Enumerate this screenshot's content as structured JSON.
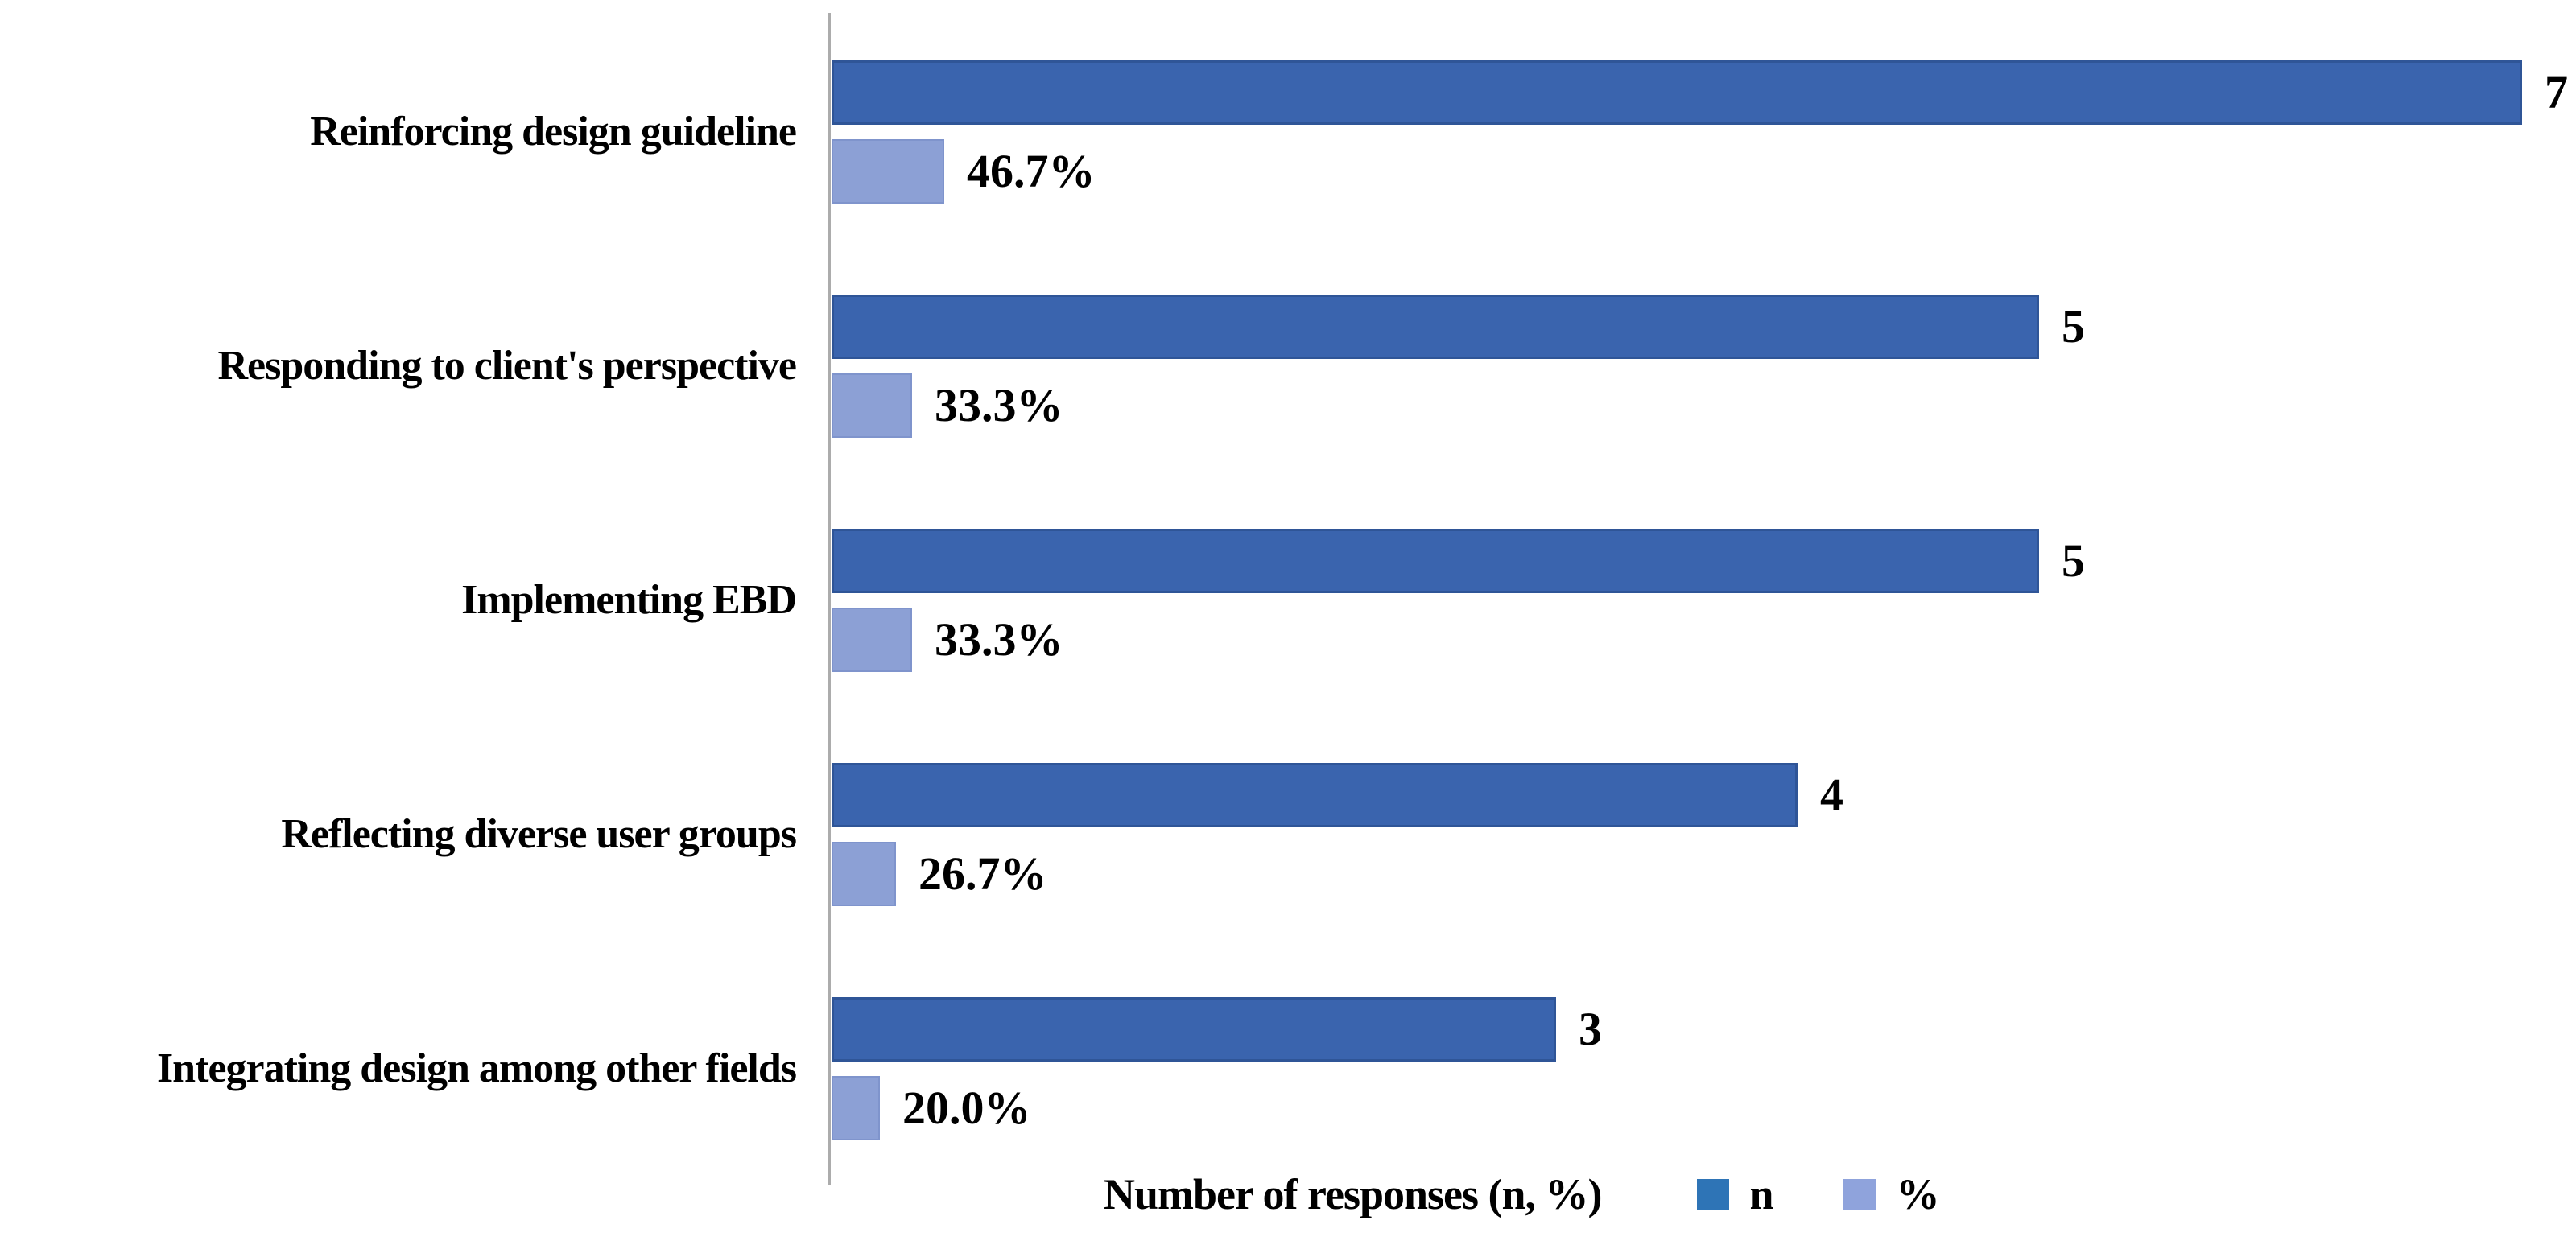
{
  "figure": {
    "background": "#FFFFFF",
    "axis_color": "#ACACAC",
    "text_color": "#000000"
  },
  "chart_data": {
    "type": "bar",
    "orientation": "horizontal",
    "title": "",
    "xlabel": "Number of responses (n, %)",
    "ylabel": "",
    "categories": [
      "Reinforcing design guideline",
      "Responding to client's perspective",
      "Implementing EBD",
      "Reflecting diverse user groups",
      "Integrating design among other fields"
    ],
    "series": [
      {
        "name": "n",
        "color": "#3A64AE",
        "border_color": "#2F5597",
        "values": [
          7,
          5,
          5,
          4,
          3
        ],
        "data_labels": [
          "7",
          "5",
          "5",
          "4",
          "3"
        ]
      },
      {
        "name": "%",
        "color": "#8CA0D5",
        "border_color": "#7F94CC",
        "values": [
          46.7,
          33.3,
          33.3,
          26.7,
          20.0
        ],
        "data_labels": [
          "46.7%",
          "33.3%",
          "33.3%",
          "26.7%",
          "20.0%"
        ],
        "plotted_as": "fraction of 1 on shared value axis"
      }
    ],
    "xlim": [
      0,
      7.2
    ],
    "gridlines": false,
    "value_axis_visible": false,
    "legend_position": "bottom",
    "legend": {
      "title": "Number of responses (n, %)",
      "items": [
        {
          "label": "n",
          "color": "#2E74B6"
        },
        {
          "label": "%",
          "color": "#8FA3DC"
        }
      ]
    }
  }
}
